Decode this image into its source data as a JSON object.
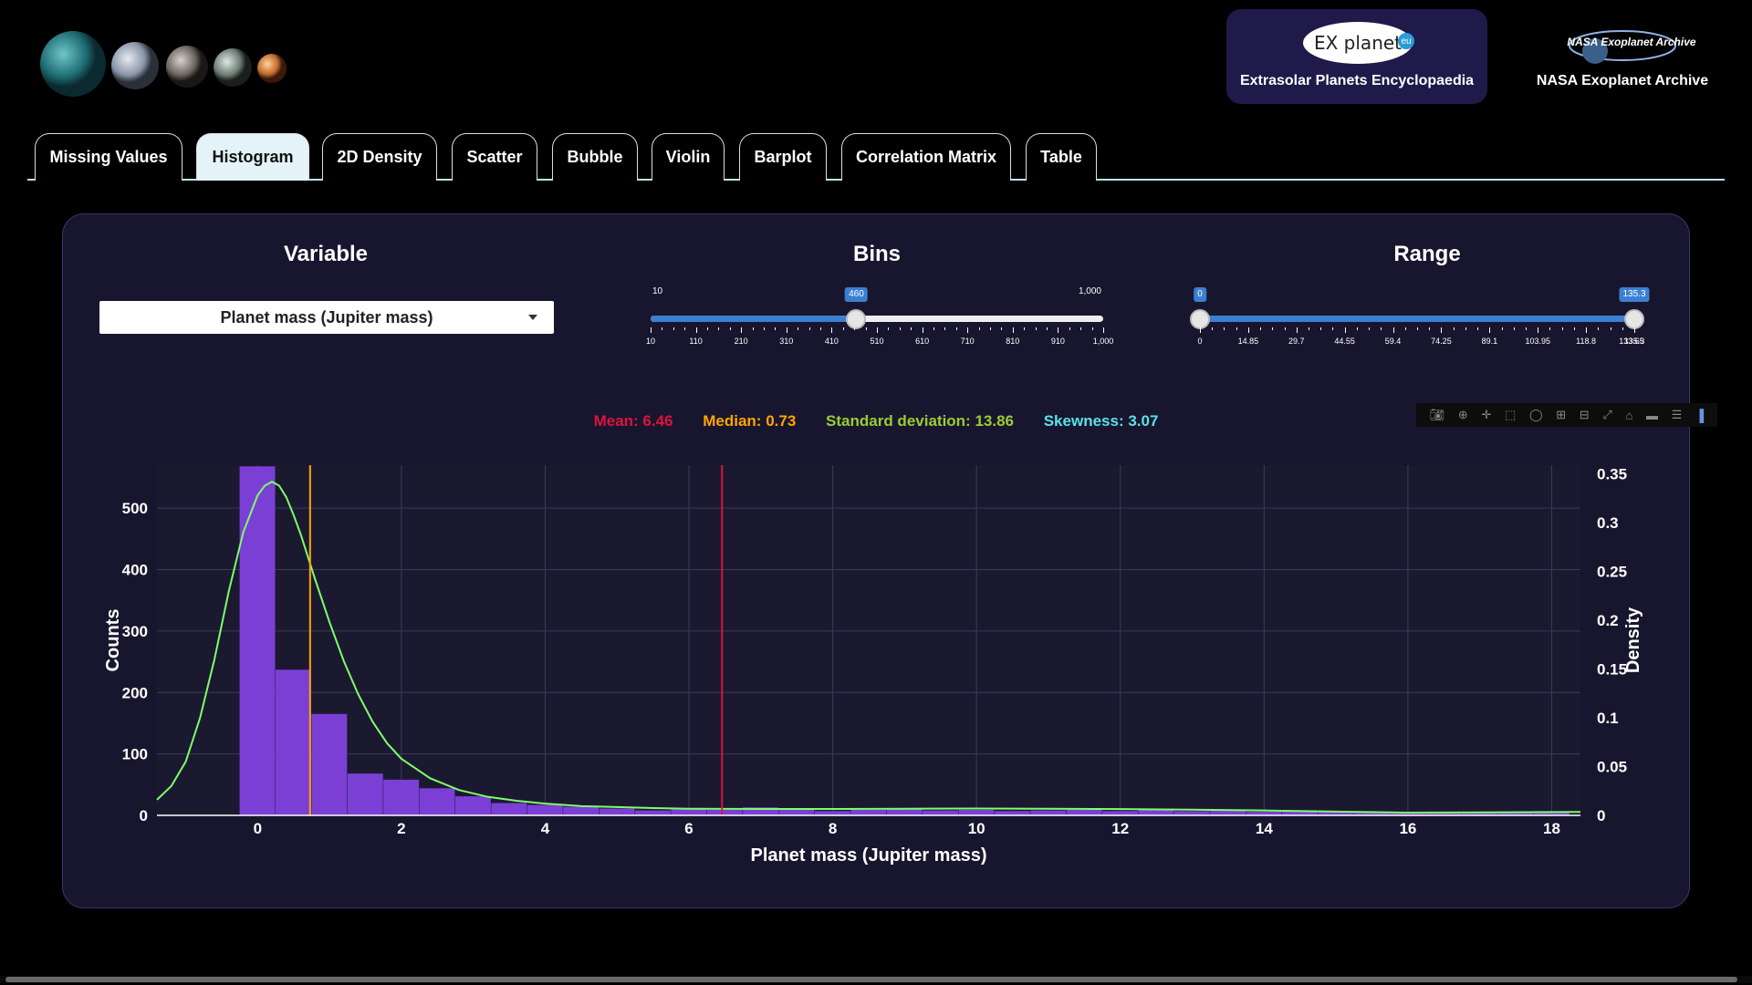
{
  "header": {
    "exoplanet_logo_text": "EX planet",
    "exoplanet_logo_badge": "eu",
    "exoplanet_label": "Extrasolar Planets Encyclopaedia",
    "nasa_logo_text": "NASA Exoplanet Archive",
    "nasa_label": "NASA Exoplanet Archive"
  },
  "tabs": [
    {
      "label": "Missing Values",
      "active": false
    },
    {
      "label": "Histogram",
      "active": true
    },
    {
      "label": "2D Density",
      "active": false
    },
    {
      "label": "Scatter",
      "active": false
    },
    {
      "label": "Bubble",
      "active": false
    },
    {
      "label": "Violin",
      "active": false
    },
    {
      "label": "Barplot",
      "active": false
    },
    {
      "label": "Correlation Matrix",
      "active": false
    },
    {
      "label": "Table",
      "active": false
    }
  ],
  "controls": {
    "variable_title": "Variable",
    "variable_value": "Planet mass (Jupiter mass)",
    "bins_title": "Bins",
    "bins": {
      "min_label": "10",
      "max_label": "1,000",
      "value_label": "460",
      "min": 10,
      "max": 1000,
      "value": 460,
      "ticks": [
        "10",
        "110",
        "210",
        "310",
        "410",
        "510",
        "610",
        "710",
        "810",
        "910",
        "1,000"
      ]
    },
    "range_title": "Range",
    "range": {
      "low_label": "0",
      "high_label": "135.3",
      "min": 0,
      "max": 135.3,
      "low": 0,
      "high": 135.3,
      "ticks": [
        "0",
        "14.85",
        "29.7",
        "44.55",
        "59.4",
        "74.25",
        "89.1",
        "103.95",
        "118.8",
        "135.3"
      ],
      "last_overlap_tick": "133.65"
    }
  },
  "stats": {
    "mean": "Mean: 6.46",
    "median": "Median: 0.73",
    "std": "Standard deviation: 13.86",
    "skew": "Skewness: 3.07"
  },
  "colors": {
    "mean": "#dc143c",
    "median": "#ffa500",
    "std": "#9acd32",
    "skew": "#5ce1e6",
    "bars": "#7b3fd6",
    "kde": "#7dff6a",
    "accent": "#3b7fd1"
  },
  "modebar_icons": [
    "camera-icon",
    "zoom-icon",
    "pan-icon",
    "box-select-icon",
    "lasso-icon",
    "zoom-in-icon",
    "zoom-out-icon",
    "autoscale-icon",
    "home-icon",
    "spike-lines-icon",
    "compare-icon",
    "plotly-logo-icon"
  ],
  "chart_data": {
    "type": "bar",
    "xlabel": "Planet mass (Jupiter mass)",
    "ylabel": "Counts",
    "y2label": "Density",
    "xlim": [
      -1.4,
      18.4
    ],
    "ylim": [
      0,
      570
    ],
    "y2lim": [
      0,
      0.359
    ],
    "xticks": [
      0,
      2,
      4,
      6,
      8,
      10,
      12,
      14,
      16,
      18
    ],
    "yticks": [
      0,
      100,
      200,
      300,
      400,
      500
    ],
    "y2ticks": [
      0,
      0.05,
      0.1,
      0.15,
      0.2,
      0.25,
      0.3,
      0.35
    ],
    "y2ticklabels": [
      "0",
      "0.05",
      "0.1",
      "0.15",
      "0.2",
      "0.25",
      "0.3",
      "0.35"
    ],
    "bin_width": 0.5,
    "bin_starts": [
      -0.25,
      0.25,
      0.75,
      1.25,
      1.75,
      2.25,
      2.75,
      3.25,
      3.75,
      4.25,
      4.75,
      5.25,
      5.75,
      6.25,
      6.75,
      7.25,
      7.75,
      8.25,
      8.75,
      9.25,
      9.75,
      10.25,
      10.75,
      11.25,
      11.75,
      12.25,
      12.75,
      13.25,
      13.75,
      14.25,
      14.75,
      15.25,
      15.75,
      16.25,
      16.75,
      17.25,
      17.75
    ],
    "counts": [
      568,
      237,
      165,
      68,
      58,
      44,
      31,
      20,
      17,
      14,
      11,
      8,
      10,
      9,
      13,
      10,
      7,
      9,
      11,
      8,
      9,
      7,
      8,
      9,
      7,
      10,
      7,
      8,
      6,
      7,
      5,
      6,
      4,
      5,
      4,
      5,
      5
    ],
    "kde": {
      "x": [
        -1.4,
        -1.2,
        -1.0,
        -0.8,
        -0.6,
        -0.4,
        -0.2,
        0.0,
        0.1,
        0.2,
        0.3,
        0.4,
        0.5,
        0.6,
        0.8,
        1.0,
        1.2,
        1.4,
        1.6,
        1.8,
        2.0,
        2.4,
        2.8,
        3.2,
        3.6,
        4.0,
        4.5,
        5.0,
        5.5,
        6.0,
        7.0,
        8.0,
        9.0,
        10.0,
        11.0,
        12.0,
        13.0,
        14.0,
        15.0,
        16.0,
        17.0,
        18.0,
        18.4
      ],
      "y": [
        0.016,
        0.03,
        0.055,
        0.1,
        0.16,
        0.23,
        0.29,
        0.328,
        0.338,
        0.342,
        0.338,
        0.326,
        0.308,
        0.288,
        0.242,
        0.198,
        0.158,
        0.124,
        0.096,
        0.074,
        0.058,
        0.038,
        0.026,
        0.019,
        0.015,
        0.012,
        0.0095,
        0.0085,
        0.0075,
        0.0068,
        0.0065,
        0.0065,
        0.0068,
        0.007,
        0.0068,
        0.0064,
        0.0058,
        0.005,
        0.0038,
        0.0028,
        0.003,
        0.0034,
        0.0035
      ]
    },
    "mean_line": 6.46,
    "median_line": 0.73,
    "grid": true
  }
}
